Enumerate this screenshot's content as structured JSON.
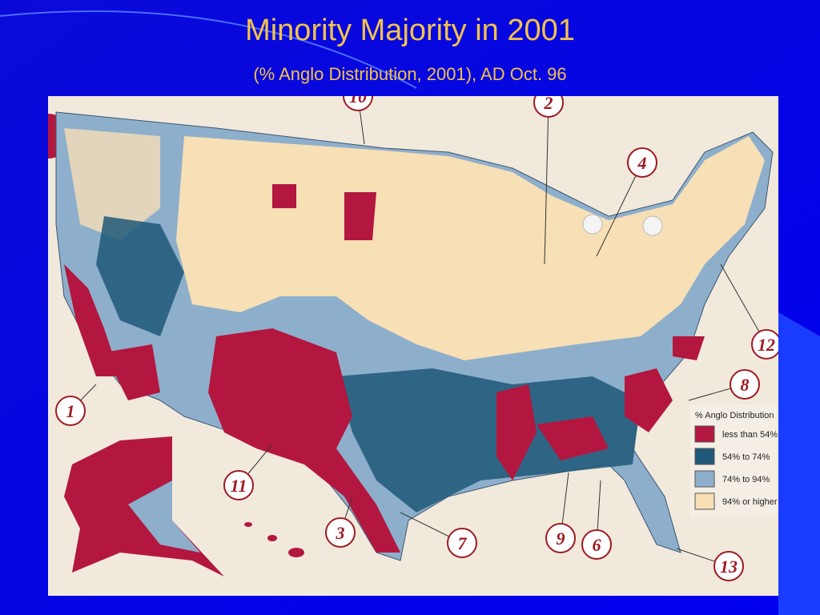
{
  "header": {
    "title": "Minority Majority in 2001",
    "subtitle": "(% Anglo Distribution, 2001), AD Oct. 96"
  },
  "legend": {
    "title": "% Anglo Distribution",
    "items": [
      {
        "label": "less than 54%",
        "color": "#b3173f"
      },
      {
        "label": "54% to 74%",
        "color": "#1f5878"
      },
      {
        "label": "74% to 94%",
        "color": "#8eafcb"
      },
      {
        "label": "94% or higher",
        "color": "#f7dfb6"
      }
    ]
  },
  "callouts": [
    "1",
    "2",
    "3",
    "4",
    "6",
    "7",
    "8",
    "9",
    "10",
    "11",
    "12",
    "13"
  ]
}
